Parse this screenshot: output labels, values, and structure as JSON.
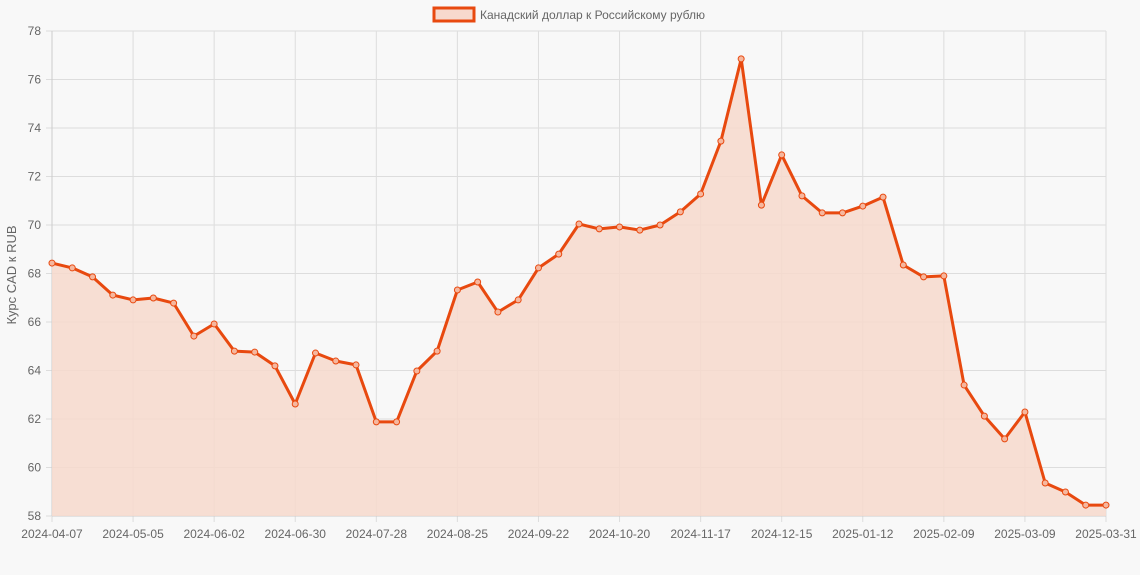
{
  "chart_data": {
    "type": "line",
    "title": "",
    "legend": {
      "position": "top",
      "entries": [
        "Канадский доллар к Российскому рублю"
      ]
    },
    "xlabel": "",
    "ylabel": "Курс CAD к RUB",
    "ylim": [
      58,
      78
    ],
    "yticks": [
      58,
      60,
      62,
      64,
      66,
      68,
      70,
      72,
      74,
      76,
      78
    ],
    "xtick_labels": [
      "2024-04-07",
      "2024-05-05",
      "2024-06-02",
      "2024-06-30",
      "2024-07-28",
      "2024-08-25",
      "2024-09-22",
      "2024-10-20",
      "2024-11-17",
      "2024-12-15",
      "2025-01-12",
      "2025-02-09",
      "2025-03-09",
      "2025-03-31"
    ],
    "grid": true,
    "filled": true,
    "colors": {
      "line": "#e8490f",
      "fill": "#f7d9cd",
      "grid": "#dddddd",
      "background": "#f8f8f8"
    },
    "series": [
      {
        "name": "Канадский доллар к Российскому рублю",
        "values": [
          68.43,
          68.23,
          67.86,
          67.11,
          66.91,
          66.99,
          66.78,
          65.42,
          65.92,
          64.8,
          64.76,
          64.19,
          62.62,
          64.72,
          64.39,
          64.23,
          61.88,
          61.88,
          63.98,
          64.8,
          67.32,
          67.65,
          66.41,
          66.91,
          68.23,
          68.8,
          70.04,
          69.84,
          69.92,
          69.79,
          70.0,
          70.54,
          71.28,
          73.46,
          76.85,
          70.82,
          72.89,
          71.2,
          70.5,
          70.5,
          70.78,
          71.15,
          68.35,
          67.86,
          67.9,
          63.4,
          62.12,
          61.18,
          62.29,
          59.36,
          58.99,
          58.45,
          58.45
        ]
      }
    ]
  }
}
